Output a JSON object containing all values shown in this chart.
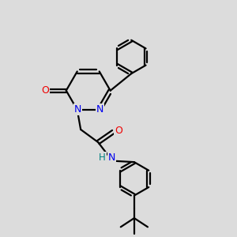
{
  "bg_color": "#dcdcdc",
  "atom_colors": {
    "C": "#000000",
    "N": "#0000ee",
    "O": "#ee0000",
    "H": "#008080"
  },
  "line_color": "#000000",
  "line_width": 1.6,
  "figsize": [
    3.0,
    3.0
  ],
  "dpi": 100
}
